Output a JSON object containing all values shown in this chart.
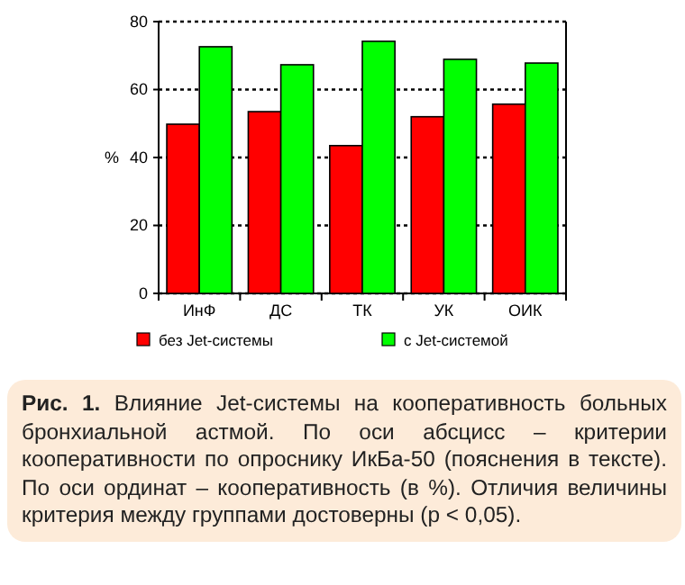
{
  "chart_data": {
    "type": "bar",
    "title": "Рис. 1.",
    "annotations": [
      "Влияние Jet-системы на кооперативность больных бронхиальной астмой. По оси абсцисс – критерии кооперативности по опроснику ИкБа-50 (пояснения в тексте). По оси ординат – кооперативность (в %). Отличия величины критерия между группами достоверны (p < 0,05)."
    ],
    "ylabel": "%",
    "categories": [
      "ИнФ",
      "ДС",
      "ТК",
      "УК",
      "ОИК"
    ],
    "series": [
      {
        "name": "без Jet-системы",
        "color": "#ff0000",
        "values": [
          49.8,
          53.5,
          43.5,
          52,
          55.7
        ]
      },
      {
        "name": "с Jet-системой",
        "color": "#00ff00",
        "values": [
          72.6,
          67.3,
          74.2,
          68.9,
          67.8
        ]
      }
    ],
    "ylim": [
      0,
      80
    ],
    "yticks": [
      0,
      20,
      40,
      60,
      80
    ],
    "grid": "y",
    "legend": "bottom"
  }
}
